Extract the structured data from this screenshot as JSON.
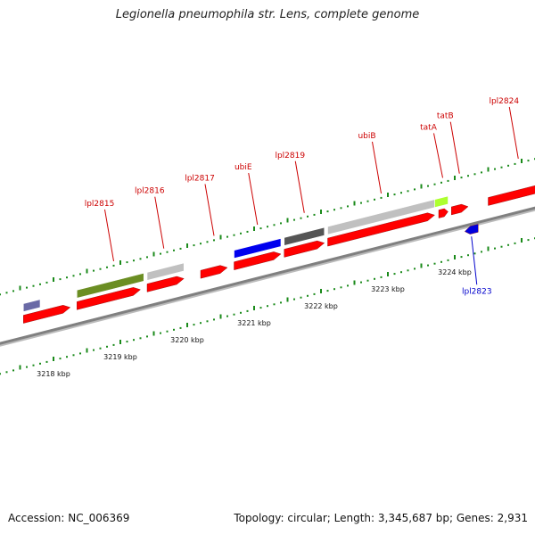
{
  "title": "Legionella pneumophila str. Lens, complete genome",
  "footer": {
    "accession": "Accession: NC_006369",
    "summary": "Topology: circular; Length: 3,345,687 bp; Genes: 2,931"
  },
  "colors": {
    "forward_cds": "#ff0000",
    "reverse_cds": "#0000dd",
    "forward_label": "#cc0000",
    "reverse_label": "#0000cc",
    "tick": "#1a8a1a",
    "backbone": "#808080"
  },
  "map": {
    "kbp_ticks": [
      {
        "kb": 3218,
        "label": "3218 kbp"
      },
      {
        "kb": 3219,
        "label": "3219 kbp"
      },
      {
        "kb": 3220,
        "label": "3220 kbp"
      },
      {
        "kb": 3221,
        "label": "3221 kbp"
      },
      {
        "kb": 3222,
        "label": "3222 kbp"
      },
      {
        "kb": 3223,
        "label": "3223 kbp"
      },
      {
        "kb": 3224,
        "label": "3224 kbp"
      }
    ],
    "forward_genes": [
      {
        "start": 3217.55,
        "end": 3218.25
      },
      {
        "start": 3218.35,
        "end": 3219.3
      },
      {
        "start": 3219.4,
        "end": 3219.95
      },
      {
        "start": 3220.2,
        "end": 3220.6
      },
      {
        "start": 3220.7,
        "end": 3221.4
      },
      {
        "start": 3221.45,
        "end": 3222.05
      },
      {
        "start": 3222.1,
        "end": 3223.7
      },
      {
        "start": 3223.76,
        "end": 3223.9
      },
      {
        "start": 3223.95,
        "end": 3224.2
      },
      {
        "start": 3224.5,
        "end": 3225.4
      }
    ],
    "reverse_genes": [
      {
        "start": 3224.15,
        "end": 3224.35,
        "name": "lpl2823"
      }
    ],
    "feature_bars": [
      {
        "start": 3217.55,
        "end": 3217.8,
        "color": "#6a6aa6"
      },
      {
        "start": 3218.35,
        "end": 3219.35,
        "color": "#6b8e23"
      },
      {
        "start": 3219.4,
        "end": 3219.95,
        "color": "#c0c0c0"
      },
      {
        "start": 3220.7,
        "end": 3221.4,
        "color": "#0000ee"
      },
      {
        "start": 3221.45,
        "end": 3222.05,
        "color": "#555555"
      },
      {
        "start": 3222.1,
        "end": 3223.7,
        "color": "#c0c0c0"
      },
      {
        "start": 3223.7,
        "end": 3223.9,
        "color": "#adff2f"
      }
    ],
    "forward_labels": [
      {
        "name": "lpl2815",
        "target": 3218.9
      },
      {
        "name": "lpl2816",
        "target": 3219.65
      },
      {
        "name": "lpl2817",
        "target": 3220.4
      },
      {
        "name": "ubiE",
        "target": 3221.05
      },
      {
        "name": "lpl2819",
        "target": 3221.75
      },
      {
        "name": "ubiB",
        "target": 3222.9
      },
      {
        "name": "tatA",
        "target": 3223.82
      },
      {
        "name": "tatB",
        "target": 3224.07
      },
      {
        "name": "lpl2824",
        "target": 3224.95
      }
    ]
  }
}
